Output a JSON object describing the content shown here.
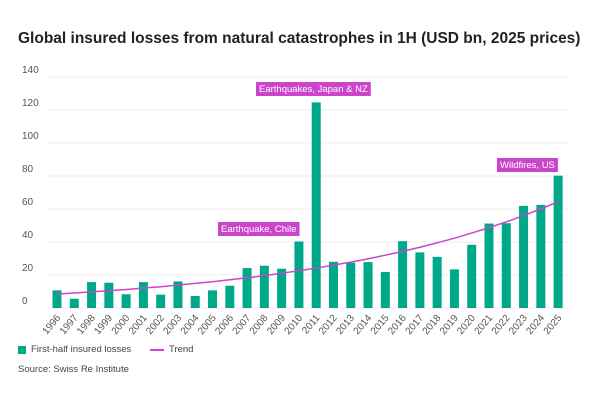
{
  "title": "Global insured losses from natural catastrophes in 1H (USD bn, 2025 prices)",
  "source": "Source: Swiss Re Institute",
  "colors": {
    "bar": "#00a88a",
    "trend": "#cc44cc",
    "annotation_bg": "#cc44cc"
  },
  "chart_data": {
    "type": "bar",
    "title": "Global insured losses from natural catastrophes in 1H (USD bn, 2025 prices)",
    "categories": [
      "1996",
      "1997",
      "1998",
      "1999",
      "2000",
      "2001",
      "2002",
      "2003",
      "2004",
      "2005",
      "2006",
      "2007",
      "2008",
      "2009",
      "2010",
      "2011",
      "2012",
      "2013",
      "2014",
      "2015",
      "2016",
      "2017",
      "2018",
      "2019",
      "2020",
      "2021",
      "2022",
      "2023",
      "2024",
      "2025"
    ],
    "series": [
      {
        "name": "First-half insured losses",
        "type": "bar",
        "values": [
          10.7,
          5.6,
          15.7,
          15.3,
          8.3,
          15.7,
          8.1,
          16.1,
          7.3,
          10.7,
          13.5,
          24.2,
          25.6,
          23.8,
          40.3,
          124.6,
          28,
          27.4,
          27.8,
          21.8,
          40.5,
          33.7,
          31,
          23.4,
          38.3,
          51.2,
          51.4,
          61.9,
          62.5,
          80.2
        ]
      },
      {
        "name": "Trend",
        "type": "line",
        "values": [
          8.5,
          9.1,
          9.8,
          10.5,
          11.2,
          12.1,
          12.9,
          13.9,
          14.9,
          15.9,
          17.1,
          18.3,
          19.6,
          21.1,
          22.6,
          24.2,
          26.0,
          27.8,
          29.8,
          32.0,
          34.3,
          36.8,
          39.5,
          42.3,
          45.4,
          48.7,
          52.2,
          56.0,
          60.0,
          64.4
        ]
      }
    ],
    "ylim": [
      0,
      140
    ],
    "yticks": [
      0,
      20,
      40,
      60,
      80,
      100,
      120,
      140
    ],
    "grid": true,
    "legend": "bottom-left",
    "annotations": [
      {
        "text": "Earthquake, Chile",
        "category": "2010"
      },
      {
        "text": "Earthquakes, Japan & NZ",
        "category": "2011"
      },
      {
        "text": "Wildfires, US",
        "category": "2025"
      }
    ]
  }
}
